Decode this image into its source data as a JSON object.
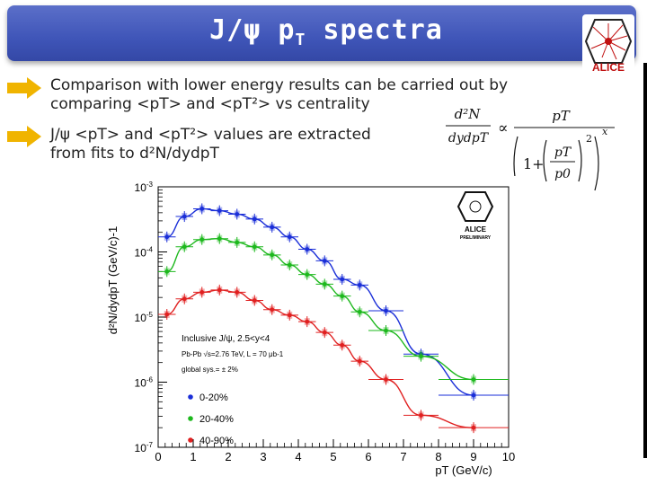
{
  "slide": {
    "title_prefix": "J/ψ p",
    "title_sub": "T",
    "title_suffix": " spectra",
    "logo_text": "ALICE",
    "bullets": [
      {
        "line1": "Comparison with lower energy results can be carried out by",
        "line2": "comparing <pT> and <pT²> vs centrality"
      },
      {
        "line1": "J/ψ <pT> and <pT²>  values are extracted",
        "line2": "from fits to d²N/dydpT"
      }
    ],
    "colors": {
      "title_bg": "#3f55b8",
      "arrow": "#f0b400"
    }
  },
  "formula": {
    "lhs_num": "d²N",
    "lhs_den": "dydpT",
    "propto": "∝",
    "rhs_num": "pT",
    "one_plus": "1+",
    "inner_num": "pT",
    "inner_den": "p0",
    "exp2": "2",
    "expx": "x"
  },
  "chart_data": {
    "type": "scatter",
    "x_scale": "linear",
    "y_scale": "log",
    "xlim": [
      0,
      10
    ],
    "ylim_decades": [
      -7,
      -3
    ],
    "x_ticks": [
      "0",
      "1",
      "2",
      "3",
      "4",
      "5",
      "6",
      "7",
      "8",
      "9",
      "10"
    ],
    "y_tick_labels": [
      "10-3",
      "10-4",
      "10-5",
      "10-6",
      "10-7"
    ],
    "xlabel": "pT (GeV/c)",
    "ylabel": "d²N/dydpT (GeV/c)-1",
    "logo": {
      "line1": "ALICE",
      "line2": "PRELIMINARY"
    },
    "annotation": {
      "line1": "Inclusive J/ψ, 2.5<y<4",
      "line2": "Pb-Pb √s=2.76 TeV, L = 70 μb-1",
      "line3": "global sys.= ± 2%"
    },
    "series": [
      {
        "name": "0-20%",
        "color": "#1a2ed8",
        "x": [
          0.25,
          0.75,
          1.25,
          1.75,
          2.25,
          2.75,
          3.25,
          3.75,
          4.25,
          4.75,
          5.25,
          5.75,
          6.5,
          7.5,
          9.0
        ],
        "y": [
          0.00017,
          0.00035,
          0.00046,
          0.00043,
          0.00038,
          0.00032,
          0.00024,
          0.00017,
          0.00011,
          7.3e-05,
          3.8e-05,
          3.1e-05,
          1.25e-05,
          2.7e-06,
          6.3e-07
        ]
      },
      {
        "name": "20-40%",
        "color": "#1db81d",
        "x": [
          0.25,
          0.75,
          1.25,
          1.75,
          2.25,
          2.75,
          3.25,
          3.75,
          4.25,
          4.75,
          5.25,
          5.75,
          6.5,
          7.5,
          9.0
        ],
        "y": [
          5e-05,
          0.00012,
          0.000155,
          0.00016,
          0.00014,
          0.00012,
          9e-05,
          6.3e-05,
          4.5e-05,
          3.2e-05,
          2.1e-05,
          1.2e-05,
          6.2e-06,
          2.5e-06,
          1.1e-06
        ]
      },
      {
        "name": "40-90%",
        "color": "#e02020",
        "x": [
          0.25,
          0.75,
          1.25,
          1.75,
          2.25,
          2.75,
          3.25,
          3.75,
          4.25,
          4.75,
          5.25,
          5.75,
          6.5,
          7.5,
          9.0
        ],
        "y": [
          1.1e-05,
          1.9e-05,
          2.4e-05,
          2.6e-05,
          2.4e-05,
          1.8e-05,
          1.3e-05,
          1.07e-05,
          8.5e-06,
          5.8e-06,
          3.7e-06,
          2.1e-06,
          1.1e-06,
          3.1e-07,
          2e-07
        ]
      }
    ]
  }
}
